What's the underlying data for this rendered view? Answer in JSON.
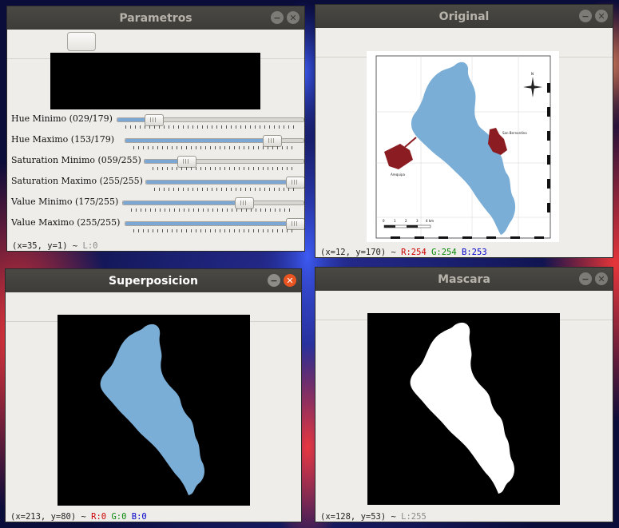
{
  "desktop": {
    "wallpaper": "nebula"
  },
  "parametros": {
    "title": "Parametros",
    "sliders": [
      {
        "label": "Hue Minimo (029/179)",
        "value": 29,
        "max": 179
      },
      {
        "label": "Hue Maximo (153/179)",
        "value": 153,
        "max": 179
      },
      {
        "label": "Saturation Minimo (059/255)",
        "value": 59,
        "max": 255
      },
      {
        "label": "Saturation Maximo (255/255)",
        "value": 255,
        "max": 255
      },
      {
        "label": "Value Minimo (175/255)",
        "value": 175,
        "max": 255
      },
      {
        "label": "Value Maximo (255/255)",
        "value": 255,
        "max": 255
      }
    ],
    "status": {
      "coords": "(x=35, y=1) ~ ",
      "pixel": "L:0"
    }
  },
  "original": {
    "title": "Original",
    "map": {
      "legend_left": "Arequipa",
      "legend_right": "San Bernardino",
      "north": "N",
      "scale_labels": [
        "0",
        "1",
        "2",
        "3",
        "4 km"
      ]
    },
    "status": {
      "coords": "(x=12, y=170) ~ ",
      "r": "R:254",
      "g": "G:254",
      "b": "B:253"
    }
  },
  "superposicion": {
    "title": "Superposicion",
    "status": {
      "coords": "(x=213, y=80) ~ ",
      "r": "R:0",
      "g": "G:0",
      "b": "B:0"
    }
  },
  "mascara": {
    "title": "Mascara",
    "status": {
      "coords": "(x=128, y=53) ~ ",
      "pixel": "L:255"
    }
  },
  "colors": {
    "lake": "#7aaed6",
    "accent": "#e95420",
    "region": "#8b1c22"
  }
}
